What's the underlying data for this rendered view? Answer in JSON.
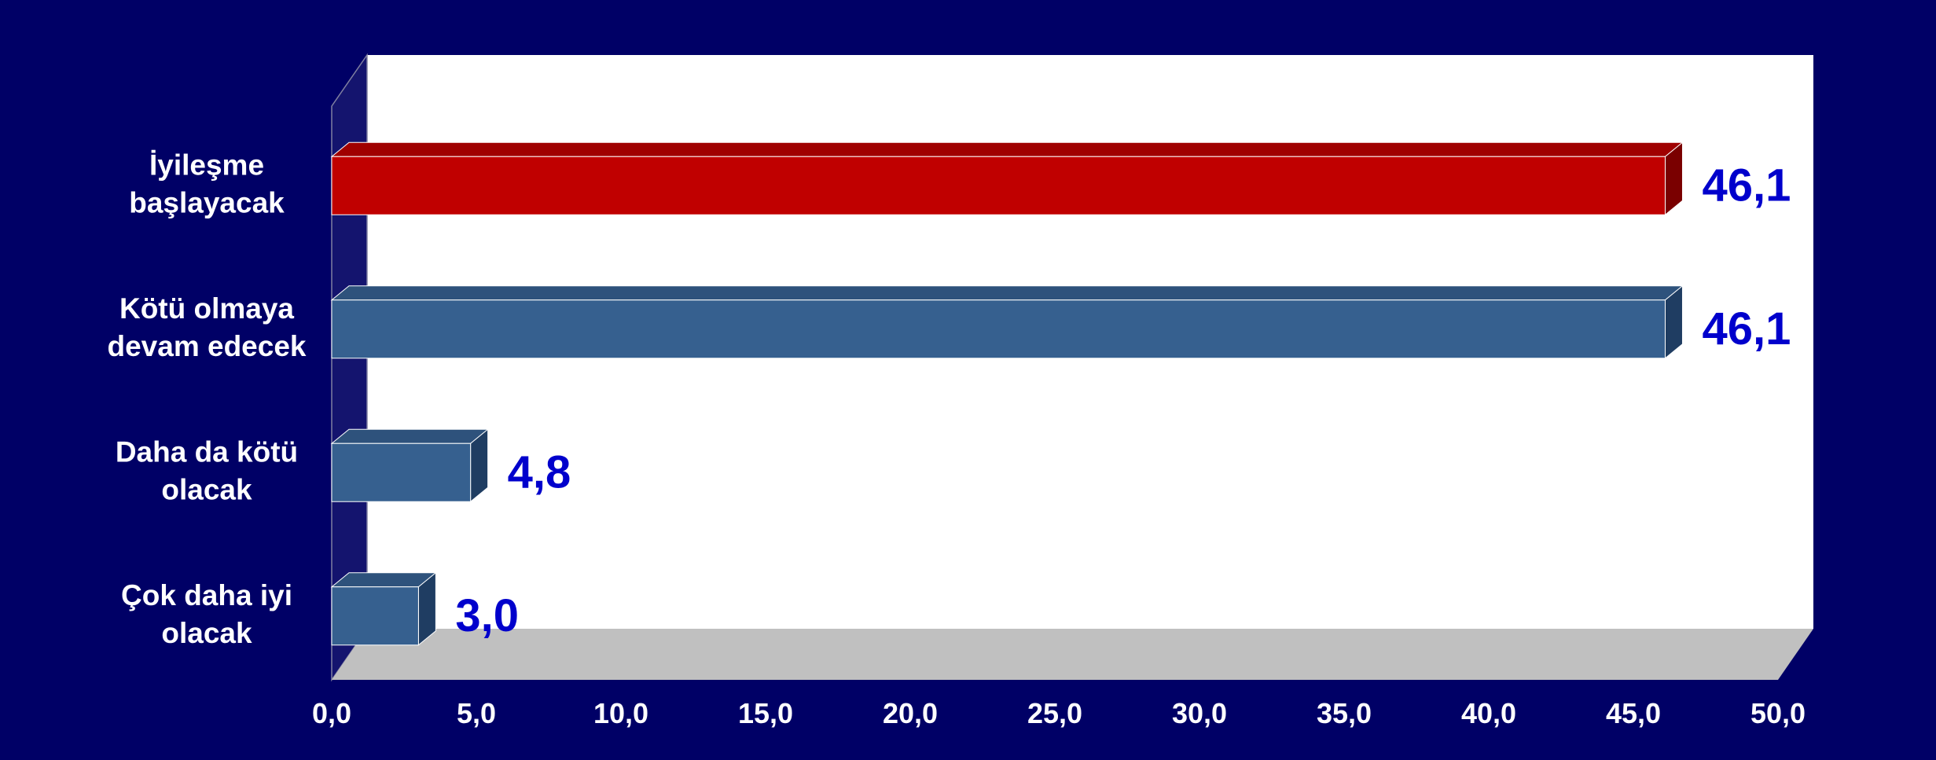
{
  "chart_data": {
    "type": "bar",
    "orientation": "horizontal",
    "style": "3d",
    "categories": [
      [
        "İyileşme",
        "başlayacak"
      ],
      [
        "Kötü olmaya",
        "devam edecek"
      ],
      [
        "Daha da kötü",
        "olacak"
      ],
      [
        "Çok daha iyi",
        "olacak"
      ]
    ],
    "values": [
      46.1,
      46.1,
      4.8,
      3.0
    ],
    "value_labels": [
      "46,1",
      "46,1",
      "4,8",
      "3,0"
    ],
    "xlim": [
      0,
      50
    ],
    "x_ticks": [
      "0,0",
      "5,0",
      "10,0",
      "15,0",
      "20,0",
      "25,0",
      "30,0",
      "35,0",
      "40,0",
      "45,0",
      "50,0"
    ],
    "title": "",
    "xlabel": "",
    "ylabel": "",
    "grid": false,
    "legend": "none"
  },
  "colors": {
    "background": "#000066",
    "plot_wall": "#ffffff",
    "side_wall": "#14146e",
    "floor": "#c0c0c0",
    "highlight_bar": "#c00000",
    "highlight_bar_top": "#a00000",
    "highlight_bar_side": "#7a0000",
    "bar": "#36608f",
    "bar_top": "#2e527c",
    "bar_side": "#1f3d62",
    "value_label": "#0000cc",
    "axis_text": "#ffffff",
    "category_text": "#ffffff"
  }
}
